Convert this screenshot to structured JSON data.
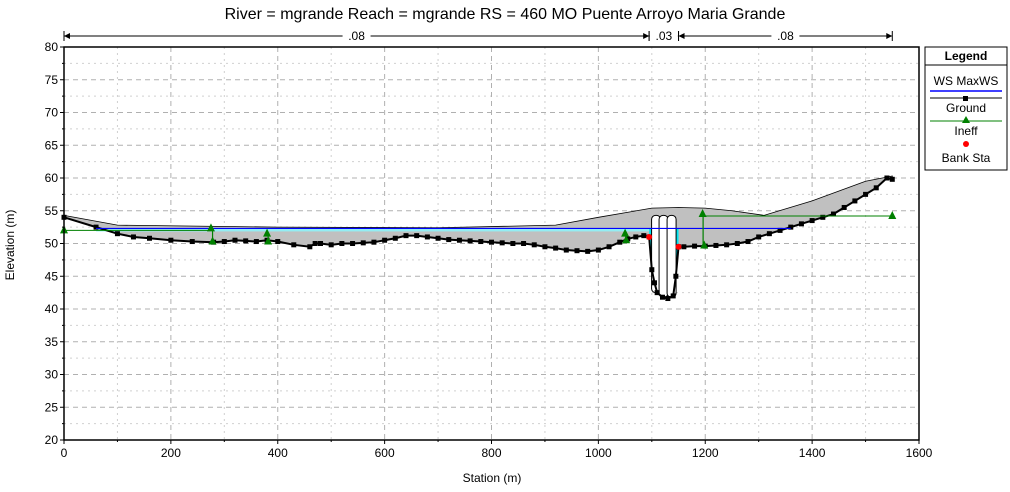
{
  "chart_data": {
    "type": "line",
    "title": "River = mgrande   Reach = mgrande        RS = 460        MO    Puente Arroyo Maria Grande",
    "xlabel": "Station (m)",
    "ylabel": "Elevation (m)",
    "xlim": [
      0,
      1600
    ],
    "ylim": [
      20,
      80
    ],
    "x_ticks": [
      "0",
      "200",
      "400",
      "600",
      "800",
      "1000",
      "1200",
      "1400",
      "1600"
    ],
    "y_ticks": [
      "20",
      "25",
      "30",
      "35",
      "40",
      "45",
      "50",
      "55",
      "60",
      "65",
      "70",
      "75",
      "80"
    ],
    "grid": true,
    "legend_position": "right",
    "legend": {
      "title": "Legend",
      "items": [
        {
          "label": "WS MaxWS",
          "color": "#0000ff"
        },
        {
          "label": "Ground",
          "color": "#000000"
        },
        {
          "label": "Ineff",
          "color": "#008000"
        },
        {
          "label": "Bank Sta",
          "color": "#ff0000"
        }
      ]
    },
    "mannings_n": [
      {
        "label": ".08",
        "x_start": 0,
        "x_end": 1095
      },
      {
        "label": ".03",
        "x_start": 1095,
        "x_end": 1150
      },
      {
        "label": ".08",
        "x_start": 1150,
        "x_end": 1550
      }
    ],
    "ground": {
      "x": [
        0,
        60,
        100,
        130,
        160,
        200,
        240,
        280,
        300,
        320,
        340,
        360,
        380,
        400,
        430,
        460,
        470,
        480,
        500,
        520,
        540,
        560,
        580,
        600,
        620,
        640,
        660,
        680,
        700,
        720,
        740,
        760,
        780,
        800,
        820,
        840,
        860,
        880,
        900,
        920,
        940,
        960,
        980,
        1000,
        1020,
        1040,
        1055,
        1070,
        1085,
        1095,
        1100,
        1105,
        1110,
        1120,
        1130,
        1140,
        1145,
        1150,
        1160,
        1180,
        1200,
        1220,
        1240,
        1260,
        1280,
        1300,
        1320,
        1340,
        1360,
        1380,
        1400,
        1420,
        1440,
        1460,
        1480,
        1500,
        1520,
        1540,
        1550
      ],
      "y": [
        54,
        52.5,
        51.5,
        51,
        50.8,
        50.5,
        50.3,
        50.2,
        50.3,
        50.5,
        50.4,
        50.3,
        50.5,
        50.3,
        49.8,
        49.5,
        50,
        50,
        49.8,
        50,
        50,
        50.1,
        50.2,
        50.5,
        50.8,
        51.2,
        51.2,
        51,
        50.8,
        50.6,
        50.5,
        50.4,
        50.3,
        50.2,
        50.1,
        50,
        50,
        49.8,
        49.5,
        49.3,
        49,
        48.9,
        48.8,
        49,
        49.5,
        50.2,
        50.7,
        51,
        51.2,
        51,
        46,
        44,
        42.5,
        41.8,
        41.6,
        42,
        45,
        49.5,
        49.5,
        49.6,
        49.6,
        49.7,
        49.8,
        50,
        50.3,
        51,
        51.5,
        52,
        52.5,
        53,
        53.5,
        54,
        54.5,
        55.5,
        56.5,
        57.5,
        58.5,
        60,
        59.8
      ]
    },
    "ws_maxws": {
      "elevation": 52.3,
      "x_start": 60,
      "x_end": 1360
    },
    "bridge_deck": {
      "x": [
        0,
        100,
        400,
        700,
        920,
        1000,
        1100,
        1150,
        1200,
        1250,
        1310,
        1400,
        1500,
        1550
      ],
      "high_chord": [
        54.3,
        52.8,
        52.5,
        52.4,
        52.8,
        54,
        55.4,
        55.5,
        55.4,
        55,
        54.3,
        56.5,
        59.5,
        60.3
      ],
      "low_chord": [
        54.3,
        52.8,
        52.5,
        52.4,
        52.8,
        54,
        55.4,
        55.5,
        55.4,
        55,
        54.3,
        56.5,
        59.5,
        60.3
      ]
    },
    "piers": [
      {
        "x": 1108,
        "top": 54.3,
        "bottom": 42.5
      },
      {
        "x": 1122,
        "top": 54.3,
        "bottom": 41.8
      },
      {
        "x": 1137,
        "top": 54.3,
        "bottom": 41.8
      }
    ],
    "ineff": [
      {
        "x": [
          0,
          275
        ],
        "elevation": 52
      },
      {
        "x": [
          1195,
          1550
        ],
        "elevation": 54.2
      }
    ],
    "ineff_markers": [
      {
        "x": 0,
        "y": 52
      },
      {
        "x": 275,
        "y": 52.3
      },
      {
        "x": 278,
        "y": 50.3
      },
      {
        "x": 380,
        "y": 51.5
      },
      {
        "x": 382,
        "y": 50.3
      },
      {
        "x": 1050,
        "y": 51.5
      },
      {
        "x": 1052,
        "y": 50.5
      },
      {
        "x": 1195,
        "y": 54.5
      },
      {
        "x": 1198,
        "y": 49.7
      },
      {
        "x": 1550,
        "y": 54.2
      }
    ],
    "ineff_verticals": [
      {
        "x": 278,
        "y1": 50.2,
        "y2": 52.3
      },
      {
        "x": 382,
        "y1": 50.3,
        "y2": 51.5
      },
      {
        "x": 1196,
        "y1": 49.6,
        "y2": 54.5
      }
    ],
    "bank_sta": [
      {
        "x": 1095,
        "y": 51
      },
      {
        "x": 1150,
        "y": 49.5
      }
    ],
    "colors": {
      "deck_fill": "#c0c0c0",
      "water_fill": "#00e5f0",
      "water_line": "#0000ff",
      "ground": "#000000",
      "ineff": "#008000",
      "bank": "#ff0000",
      "grid": "#b0b0b0"
    }
  }
}
